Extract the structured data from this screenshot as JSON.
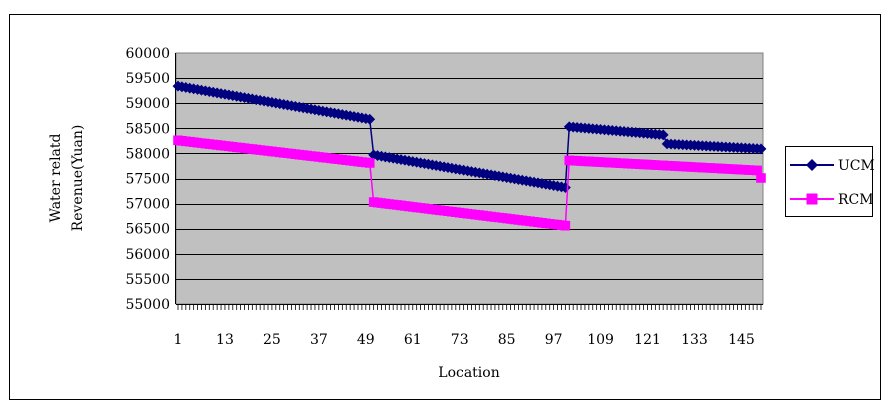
{
  "chart_data": {
    "type": "line",
    "title": "",
    "xlabel": "Location",
    "ylabel_lines": [
      "Water relatd",
      "Revenue(Yuan)"
    ],
    "ylim": [
      55000,
      60000
    ],
    "ytick_step": 500,
    "x_tick_labels": [
      "1",
      "13",
      "25",
      "37",
      "49",
      "61",
      "73",
      "85",
      "97",
      "109",
      "121",
      "133",
      "145"
    ],
    "x_tick_interval": 12,
    "grid": true,
    "legend_position": "right",
    "plot_background": "#c0c0c0",
    "series": [
      {
        "name": "UCM",
        "color": "#000080",
        "marker": "diamond",
        "segments": [
          {
            "x_start": 1,
            "x_end": 50,
            "y_start": 59340,
            "y_end": 58680
          },
          {
            "x_start": 51,
            "x_end": 100,
            "y_start": 57970,
            "y_end": 57320
          },
          {
            "x_start": 101,
            "x_end": 125,
            "y_start": 58530,
            "y_end": 58370
          },
          {
            "x_start": 126,
            "x_end": 150,
            "y_start": 58190,
            "y_end": 58090
          }
        ]
      },
      {
        "name": "RCM",
        "color": "#ff00ff",
        "marker": "square",
        "segments": [
          {
            "x_start": 1,
            "x_end": 50,
            "y_start": 58260,
            "y_end": 57810
          },
          {
            "x_start": 51,
            "x_end": 100,
            "y_start": 57030,
            "y_end": 56560
          },
          {
            "x_start": 101,
            "x_end": 149,
            "y_start": 57860,
            "y_end": 57660
          },
          {
            "x_start": 150,
            "x_end": 150,
            "y_start": 57510,
            "y_end": 57510
          }
        ]
      }
    ]
  }
}
